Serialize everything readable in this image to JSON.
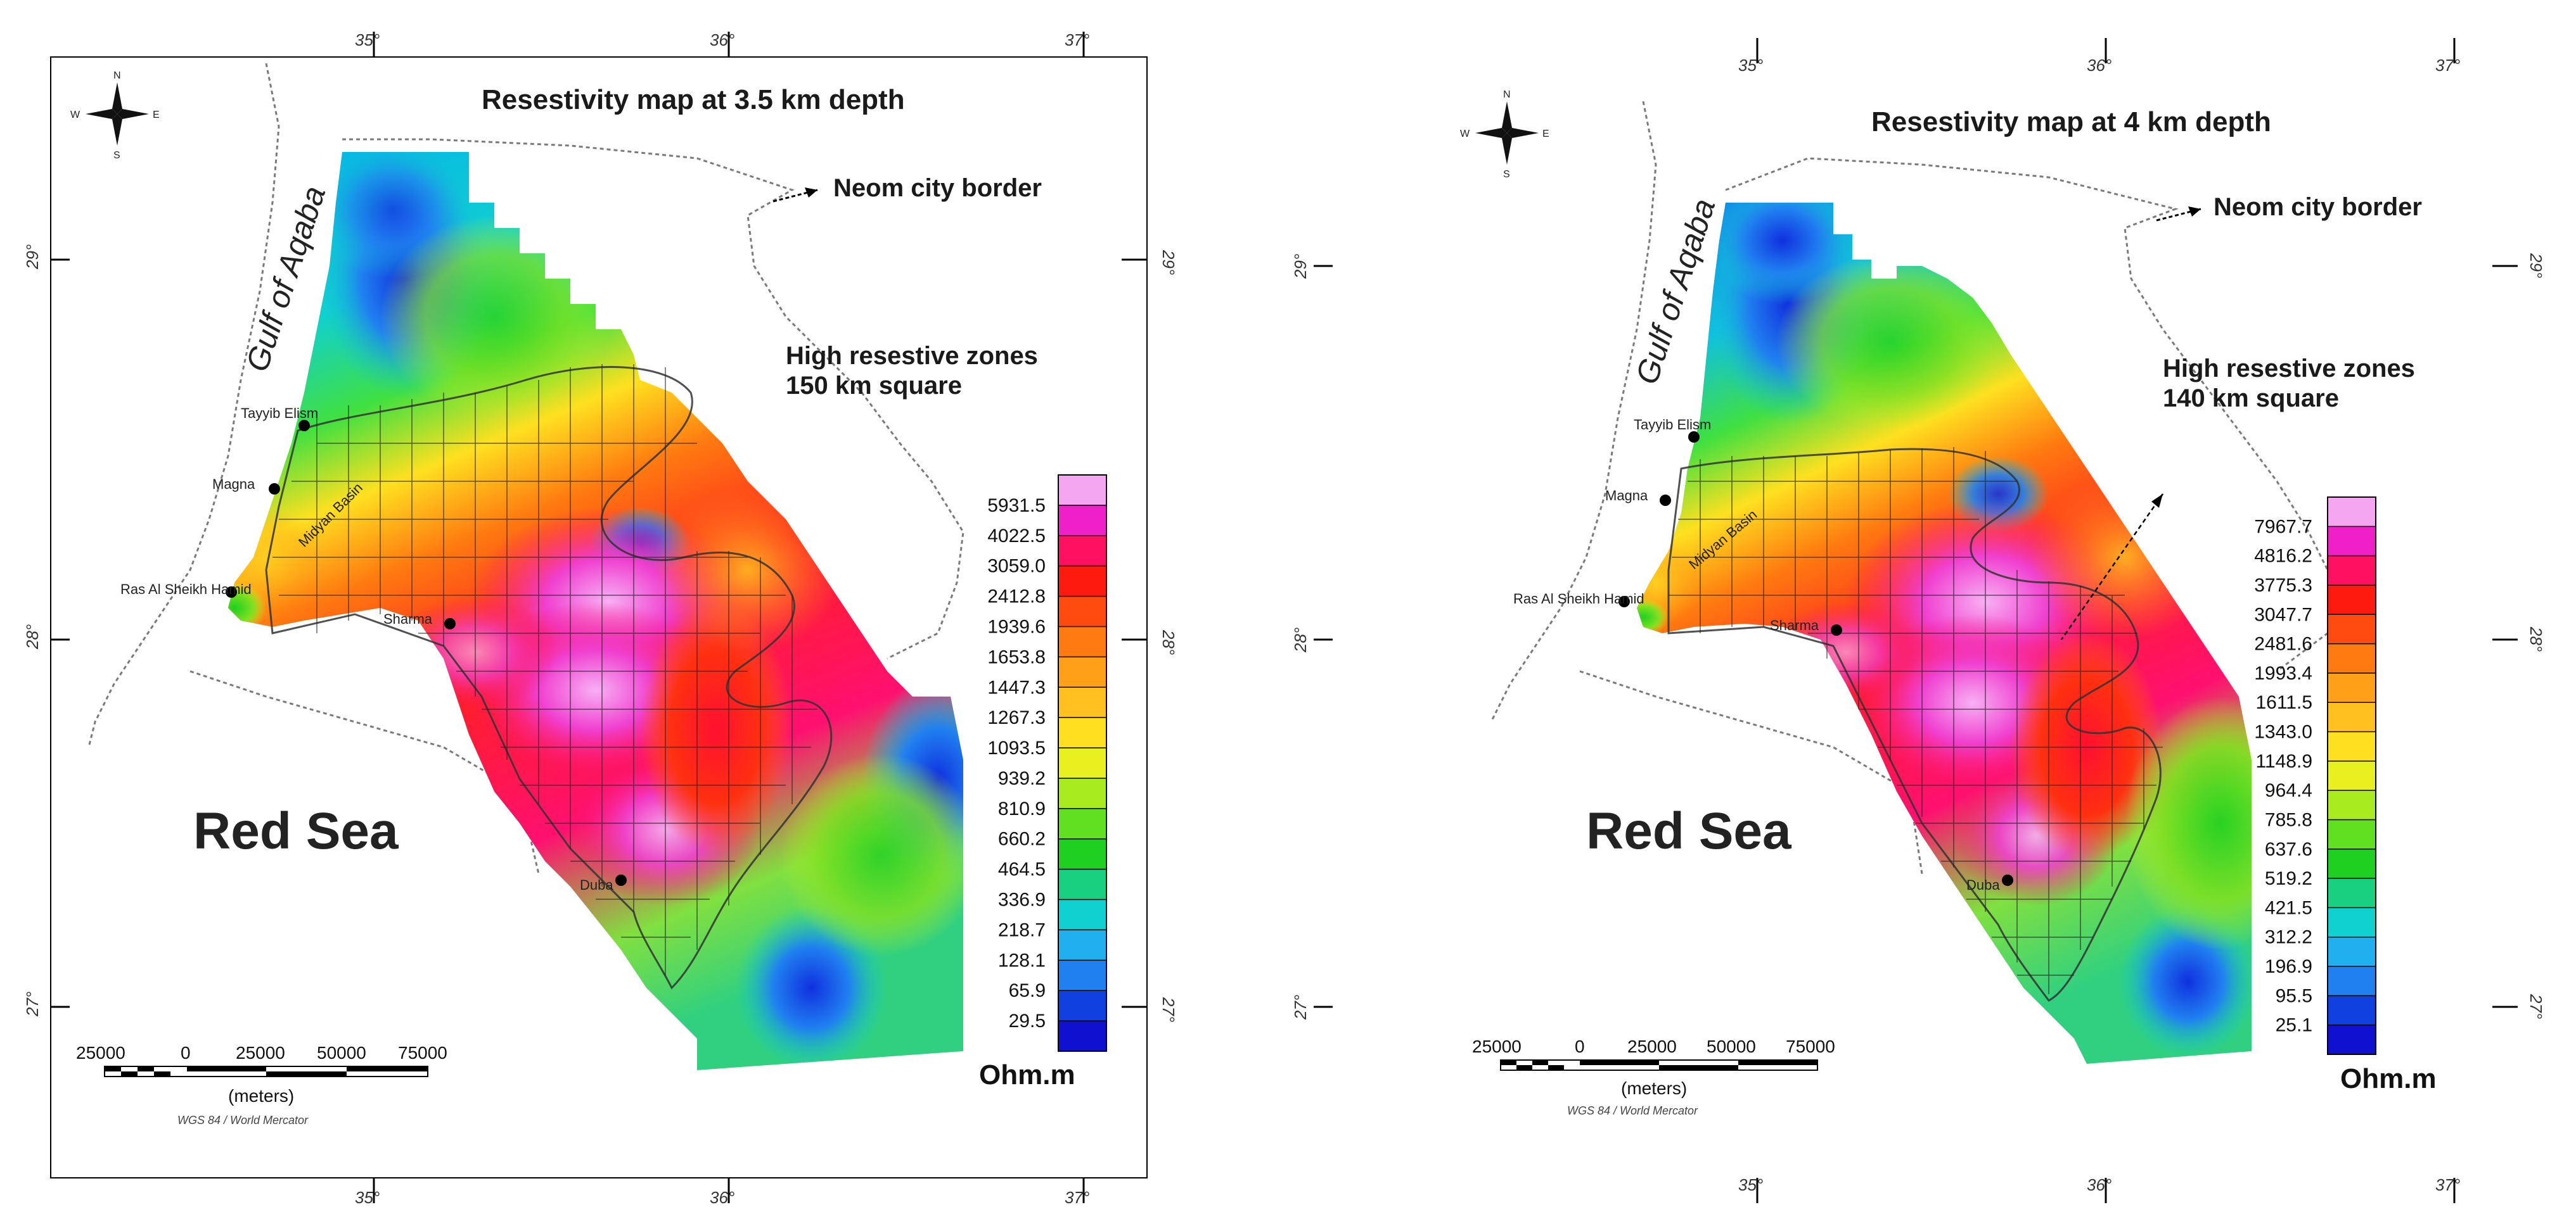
{
  "maps": [
    {
      "title": "Resestivity map at 3.5 km depth",
      "neom_label": "Neom city border",
      "zones_label_1": "High resestive zones",
      "zones_label_2": "150 km square",
      "sea_label": "Red Sea",
      "gulf_label": "Gulf of Aqaba",
      "top_lon": [
        "35°",
        "36°",
        "37°"
      ],
      "bottom_lon": [
        "35°",
        "36°",
        "37°"
      ],
      "left_lat": [
        "29°",
        "28°",
        "27°"
      ],
      "right_lat": [
        "29°",
        "28°",
        "27°"
      ],
      "towns": [
        "Tayyib Elism",
        "Magna",
        "Ras Al Sheikh Hamid",
        "Sharma",
        "Duba",
        "Midyan Basin"
      ],
      "legend_values": [
        "5931.5",
        "4022.5",
        "3059.0",
        "2412.8",
        "1939.6",
        "1653.8",
        "1447.3",
        "1267.3",
        "1093.5",
        "939.2",
        "810.9",
        "660.2",
        "464.5",
        "336.9",
        "218.7",
        "128.1",
        "65.9",
        "29.5"
      ],
      "unit": "Ohm.m",
      "scale_ticks": [
        "25000",
        "0",
        "25000",
        "50000",
        "75000"
      ],
      "scale_unit": "(meters)",
      "projection": "WGS 84 / World Mercator"
    },
    {
      "title": "Resestivity map at 4 km depth",
      "neom_label": "Neom city border",
      "zones_label_1": "High resestive zones",
      "zones_label_2": "140 km square",
      "sea_label": "Red Sea",
      "gulf_label": "Gulf of Aqaba",
      "top_lon": [
        "35°",
        "36°",
        "37°"
      ],
      "bottom_lon": [
        "35°",
        "36°",
        "37°"
      ],
      "left_lat": [
        "29°",
        "28°",
        "27°"
      ],
      "right_lat": [
        "29°",
        "28°",
        "27°"
      ],
      "towns": [
        "Tayyib Elism",
        "Magna",
        "Ras Al Sheikh Hamid",
        "Sharma",
        "Duba",
        "Midyan Basin"
      ],
      "legend_values": [
        "7967.7",
        "4816.2",
        "3775.3",
        "3047.7",
        "2481.6",
        "1993.4",
        "1611.5",
        "1343.0",
        "1148.9",
        "964.4",
        "785.8",
        "637.6",
        "519.2",
        "421.5",
        "312.2",
        "196.9",
        "95.5",
        "25.1"
      ],
      "unit": "Ohm.m",
      "scale_ticks": [
        "25000",
        "0",
        "25000",
        "50000",
        "75000"
      ],
      "scale_unit": "(meters)",
      "projection": "WGS 84 / World Mercator"
    }
  ],
  "compass": {
    "n": "N",
    "s": "S",
    "e": "E",
    "w": "W"
  },
  "legend_colors": [
    "#f4a6f0",
    "#f020c8",
    "#ff1060",
    "#ff1a10",
    "#ff4a10",
    "#ff7a10",
    "#ffa018",
    "#ffc020",
    "#ffe020",
    "#e8f020",
    "#a8ec20",
    "#60e020",
    "#20d020",
    "#18d080",
    "#10d0d0",
    "#20b0f0",
    "#2080f0",
    "#1040e0",
    "#1010d0"
  ]
}
